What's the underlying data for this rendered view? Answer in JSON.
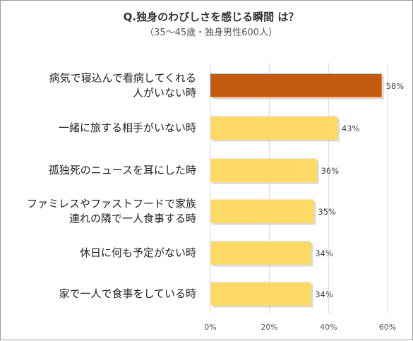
{
  "chart_data": {
    "type": "bar",
    "orientation": "horizontal",
    "title": "Q.独身のわびしさを感じる瞬間 は？",
    "subtitle": "（35～45歳・独身男性600人）",
    "categories": [
      [
        "病気で寝込んで看病してくれる",
        "人がいない時"
      ],
      [
        "一緒に旅する相手がいない時"
      ],
      [
        "孤独死のニュースを耳にした時"
      ],
      [
        "ファミレスやファストフードで家族",
        "連れの隣で一人食事する時"
      ],
      [
        "休日に何も予定がない時"
      ],
      [
        "家で一人で食事をしている時"
      ]
    ],
    "values": [
      58,
      43,
      36,
      35,
      34,
      34
    ],
    "data_labels": [
      "58%",
      "43%",
      "36%",
      "35%",
      "34%",
      "34%"
    ],
    "xlim": [
      0,
      60
    ],
    "xticks": [
      "0%",
      "20%",
      "40%",
      "60%"
    ],
    "grid": true,
    "colors": {
      "highlight": "#c55a11",
      "default": "#ffd966",
      "grid": "#d9d9d9"
    },
    "highlight_index": 0
  }
}
